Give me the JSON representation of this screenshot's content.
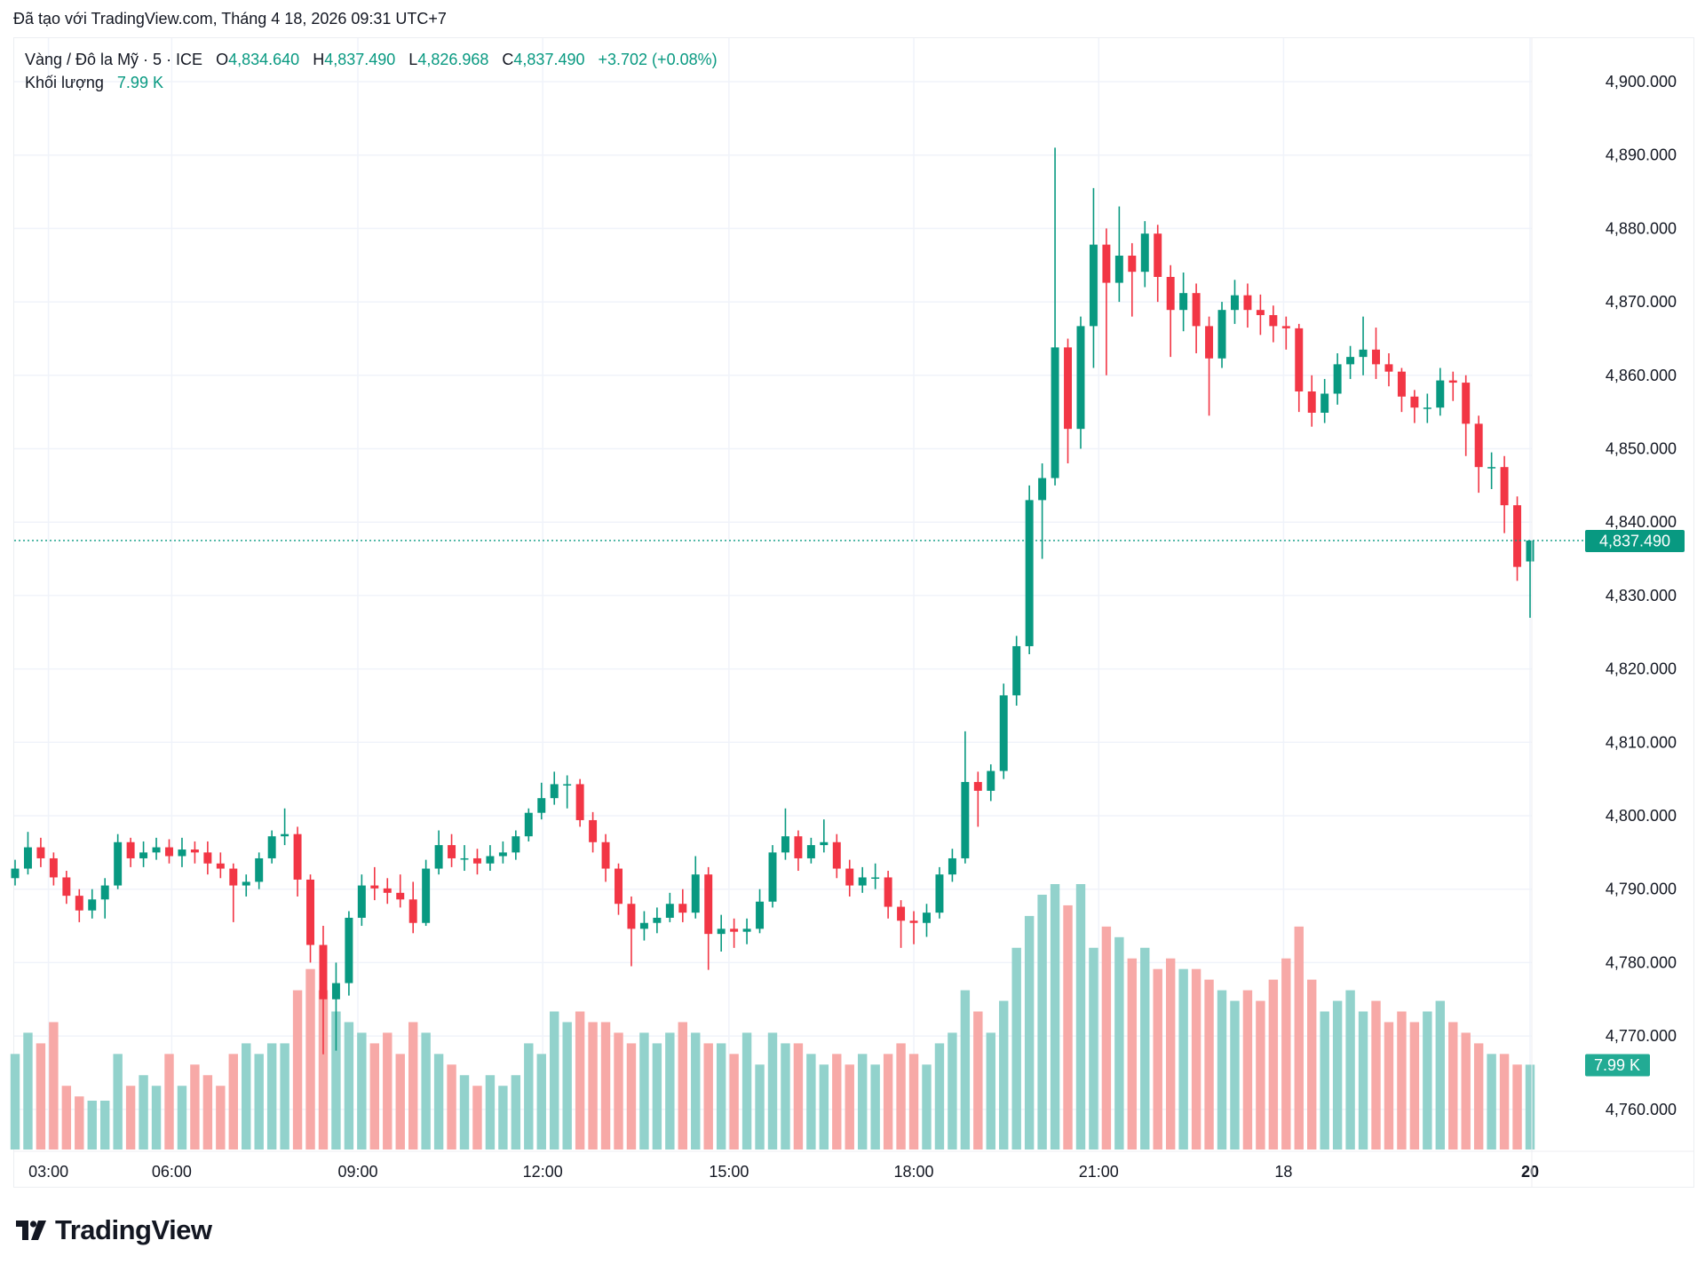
{
  "caption": "Đã tạo với TradingView.com, Tháng 4 18, 2026 09:31 UTC+7",
  "legend": {
    "symbol": "Vàng / Đô la Mỹ · 5 · ICE",
    "open_label": "O",
    "open": "4,834.640",
    "high_label": "H",
    "high": "4,837.490",
    "low_label": "L",
    "low": "4,826.968",
    "close_label": "C",
    "close": "4,837.490",
    "change": "+3.702 (+0.08%)",
    "volume_label": "Khối lượng",
    "volume": "7.99 K"
  },
  "logo": {
    "text": "TradingView"
  },
  "colors": {
    "up": "#089981",
    "down": "#F23645",
    "up_volume": "#92D2CC",
    "down_volume": "#F7A9A7",
    "grid": "#F0F3FA"
  },
  "chart_data": {
    "type": "candlestick",
    "ylim": [
      4755,
      4905
    ],
    "y_ticks": [
      "4,760.000",
      "4,770.000",
      "4,780.000",
      "4,790.000",
      "4,800.000",
      "4,810.000",
      "4,820.000",
      "4,830.000",
      "4,840.000",
      "4,850.000",
      "4,860.000",
      "4,870.000",
      "4,880.000",
      "4,890.000",
      "4,900.000"
    ],
    "y_tick_values": [
      4760,
      4770,
      4780,
      4790,
      4800,
      4810,
      4820,
      4830,
      4840,
      4850,
      4860,
      4870,
      4880,
      4890,
      4900
    ],
    "x_ticks": [
      {
        "label": "03:00",
        "bar": 2.6
      },
      {
        "label": "06:00",
        "bar": 12.2
      },
      {
        "label": "09:00",
        "bar": 26.7
      },
      {
        "label": "12:00",
        "bar": 41.1
      },
      {
        "label": "15:00",
        "bar": 55.6
      },
      {
        "label": "18:00",
        "bar": 70.0
      },
      {
        "label": "21:00",
        "bar": 84.4
      },
      {
        "label": "18",
        "bar": 98.8
      },
      {
        "label": "20",
        "bar": 118
      }
    ],
    "last_price": 4837.49,
    "last_price_label": "4,837.490",
    "last_volume_label": "7.99 K",
    "grid": true,
    "ohlc": [
      [
        4791.5,
        4794,
        4790.5,
        4792.8
      ],
      [
        4792.8,
        4797.8,
        4792,
        4795.7
      ],
      [
        4795.7,
        4797,
        4793,
        4794.2
      ],
      [
        4794.2,
        4795,
        4790.5,
        4791.6
      ],
      [
        4791.6,
        4792.5,
        4788,
        4789.1
      ],
      [
        4789.1,
        4790,
        4785.5,
        4787.1
      ],
      [
        4787.1,
        4790,
        4786,
        4788.6
      ],
      [
        4788.6,
        4791.5,
        4786,
        4790.5
      ],
      [
        4790.5,
        4797.5,
        4790,
        4796.4
      ],
      [
        4796.4,
        4797,
        4793,
        4794.2
      ],
      [
        4794.2,
        4796.5,
        4793,
        4795.0
      ],
      [
        4795.0,
        4797,
        4794,
        4795.7
      ],
      [
        4795.7,
        4796.8,
        4793.5,
        4794.5
      ],
      [
        4794.5,
        4797,
        4793,
        4795.4
      ],
      [
        4795.4,
        4796.5,
        4793.5,
        4795.0
      ],
      [
        4795.0,
        4796.5,
        4792,
        4793.5
      ],
      [
        4793.5,
        4795,
        4791.5,
        4792.8
      ],
      [
        4792.8,
        4793.5,
        4785.5,
        4790.5
      ],
      [
        4790.5,
        4792,
        4789,
        4791.0
      ],
      [
        4791.0,
        4795,
        4790,
        4794.2
      ],
      [
        4794.2,
        4798,
        4793.5,
        4797.2
      ],
      [
        4797.2,
        4801,
        4796,
        4797.5
      ],
      [
        4797.5,
        4798.5,
        4789,
        4791.3
      ],
      [
        4791.3,
        4792,
        4780,
        4782.4
      ],
      [
        4782.4,
        4785,
        4767.5,
        4775.0
      ],
      [
        4775.0,
        4780,
        4768,
        4777.2
      ],
      [
        4777.2,
        4787,
        4775.5,
        4786.1
      ],
      [
        4786.1,
        4792,
        4785,
        4790.5
      ],
      [
        4790.5,
        4793,
        4788.5,
        4790.1
      ],
      [
        4790.1,
        4791.5,
        4788,
        4789.5
      ],
      [
        4789.5,
        4792,
        4787.5,
        4788.6
      ],
      [
        4788.6,
        4791,
        4784,
        4785.4
      ],
      [
        4785.4,
        4794,
        4785,
        4792.8
      ],
      [
        4792.8,
        4798,
        4792,
        4796.0
      ],
      [
        4796.0,
        4797.5,
        4793,
        4794.2
      ],
      [
        4794.2,
        4796,
        4792.5,
        4794.2
      ],
      [
        4794.2,
        4795.5,
        4792,
        4793.5
      ],
      [
        4793.5,
        4796,
        4792.5,
        4794.5
      ],
      [
        4794.5,
        4796.5,
        4793.5,
        4795.0
      ],
      [
        4795.0,
        4798,
        4794,
        4797.2
      ],
      [
        4797.2,
        4801,
        4796.5,
        4800.4
      ],
      [
        4800.4,
        4804.5,
        4799.5,
        4802.4
      ],
      [
        4802.4,
        4806,
        4801.5,
        4804.3
      ],
      [
        4804.3,
        4805.5,
        4801,
        4804.3
      ],
      [
        4804.3,
        4805,
        4798.5,
        4799.4
      ],
      [
        4799.4,
        4800.5,
        4795,
        4796.4
      ],
      [
        4796.4,
        4797.5,
        4791,
        4792.8
      ],
      [
        4792.8,
        4793.5,
        4786.5,
        4788.0
      ],
      [
        4788.0,
        4789,
        4779.5,
        4784.6
      ],
      [
        4784.6,
        4787,
        4783,
        4785.4
      ],
      [
        4785.4,
        4787.5,
        4784,
        4786.1
      ],
      [
        4786.1,
        4789.5,
        4785.5,
        4788.0
      ],
      [
        4788.0,
        4790,
        4785.5,
        4786.8
      ],
      [
        4786.8,
        4794.5,
        4786,
        4792.0
      ],
      [
        4792.0,
        4793,
        4779,
        4783.9
      ],
      [
        4783.9,
        4786.5,
        4781.5,
        4784.6
      ],
      [
        4784.6,
        4786,
        4782,
        4784.2
      ],
      [
        4784.2,
        4786,
        4782.5,
        4784.6
      ],
      [
        4784.6,
        4790,
        4784,
        4788.3
      ],
      [
        4788.3,
        4796,
        4787.5,
        4795.0
      ],
      [
        4795.0,
        4801,
        4794,
        4797.2
      ],
      [
        4797.2,
        4798,
        4792.5,
        4794.2
      ],
      [
        4794.2,
        4797,
        4793.5,
        4796.0
      ],
      [
        4796.0,
        4799.5,
        4795,
        4796.4
      ],
      [
        4796.4,
        4797.5,
        4791.5,
        4792.8
      ],
      [
        4792.8,
        4794,
        4789,
        4790.5
      ],
      [
        4790.5,
        4793,
        4789.5,
        4791.6
      ],
      [
        4791.6,
        4793.5,
        4790,
        4791.6
      ],
      [
        4791.6,
        4792.5,
        4786,
        4787.6
      ],
      [
        4787.6,
        4788.5,
        4782,
        4785.7
      ],
      [
        4785.7,
        4787,
        4782.5,
        4785.4
      ],
      [
        4785.4,
        4788,
        4783.5,
        4786.8
      ],
      [
        4786.8,
        4793,
        4786,
        4792.0
      ],
      [
        4792.0,
        4795.5,
        4791,
        4794.2
      ],
      [
        4794.2,
        4811.5,
        4793.5,
        4804.6
      ],
      [
        4804.6,
        4806,
        4798.5,
        4803.4
      ],
      [
        4803.4,
        4807,
        4802,
        4806.1
      ],
      [
        4806.1,
        4818,
        4805,
        4816.4
      ],
      [
        4816.4,
        4824.5,
        4815,
        4823.1
      ],
      [
        4823.1,
        4845,
        4822,
        4843.0
      ],
      [
        4843.0,
        4848,
        4835,
        4846.0
      ],
      [
        4846.0,
        4891,
        4845,
        4863.8
      ],
      [
        4863.8,
        4865,
        4848,
        4852.7
      ],
      [
        4852.7,
        4868,
        4850,
        4866.7
      ],
      [
        4866.7,
        4885.5,
        4861,
        4877.8
      ],
      [
        4877.8,
        4880,
        4860,
        4872.6
      ],
      [
        4872.6,
        4883,
        4870,
        4876.3
      ],
      [
        4876.3,
        4878,
        4868,
        4874.1
      ],
      [
        4874.1,
        4881,
        4872,
        4879.3
      ],
      [
        4879.3,
        4880.5,
        4870,
        4873.4
      ],
      [
        4873.4,
        4875,
        4862.5,
        4868.9
      ],
      [
        4868.9,
        4874,
        4866,
        4871.2
      ],
      [
        4871.2,
        4872.5,
        4863,
        4866.7
      ],
      [
        4866.7,
        4868,
        4854.5,
        4862.3
      ],
      [
        4862.3,
        4870,
        4861,
        4868.9
      ],
      [
        4868.9,
        4873,
        4867,
        4870.9
      ],
      [
        4870.9,
        4872.5,
        4866.5,
        4868.9
      ],
      [
        4868.9,
        4871,
        4865.5,
        4868.2
      ],
      [
        4868.2,
        4869.5,
        4864.5,
        4866.7
      ],
      [
        4866.7,
        4868,
        4863.5,
        4866.4
      ],
      [
        4866.4,
        4867,
        4855,
        4857.8
      ],
      [
        4857.8,
        4860,
        4853,
        4854.9
      ],
      [
        4854.9,
        4859.5,
        4853.5,
        4857.5
      ],
      [
        4857.5,
        4863,
        4856,
        4861.5
      ],
      [
        4861.5,
        4864,
        4859.5,
        4862.5
      ],
      [
        4862.5,
        4868,
        4860,
        4863.5
      ],
      [
        4863.5,
        4866.5,
        4859.5,
        4861.5
      ],
      [
        4861.5,
        4863,
        4858.5,
        4860.5
      ],
      [
        4860.5,
        4861,
        4855,
        4857.1
      ],
      [
        4857.1,
        4858,
        4853.5,
        4855.6
      ],
      [
        4855.6,
        4857.5,
        4853.5,
        4855.6
      ],
      [
        4855.6,
        4861,
        4854.5,
        4859.3
      ],
      [
        4859.3,
        4860.5,
        4856.5,
        4859.0
      ],
      [
        4859.0,
        4860,
        4849,
        4853.4
      ],
      [
        4853.4,
        4854.5,
        4844,
        4847.5
      ],
      [
        4847.5,
        4849.5,
        4844.5,
        4847.5
      ],
      [
        4847.5,
        4849,
        4838.5,
        4842.3
      ],
      [
        4842.3,
        4843.5,
        4832,
        4833.9
      ],
      [
        4834.64,
        4837.49,
        4826.968,
        4837.49
      ]
    ],
    "volume_k": [
      9,
      11,
      10,
      12,
      6,
      5,
      4.6,
      4.6,
      9,
      6,
      7,
      6,
      9,
      6,
      8,
      7,
      6,
      9,
      10,
      9,
      10,
      10,
      15,
      17,
      15,
      13,
      12,
      11,
      10,
      11,
      9,
      12,
      11,
      9,
      8,
      7,
      6,
      7,
      6,
      7,
      10,
      9,
      13,
      12,
      13,
      12,
      12,
      11,
      10,
      11,
      10,
      11,
      12,
      11,
      10,
      10,
      9,
      11,
      8,
      11,
      10,
      10,
      9,
      8,
      9,
      8,
      9,
      8,
      9,
      10,
      9,
      8,
      10,
      11,
      15,
      13,
      11,
      14,
      19,
      22,
      24,
      25,
      23,
      25,
      19,
      21,
      20,
      18,
      19,
      17,
      18,
      17,
      17,
      16,
      15,
      14,
      15,
      14,
      16,
      18,
      21,
      16,
      13,
      14,
      15,
      13,
      14,
      12,
      13,
      12,
      13,
      14,
      12,
      11,
      10,
      9,
      9,
      8,
      7.99
    ]
  }
}
